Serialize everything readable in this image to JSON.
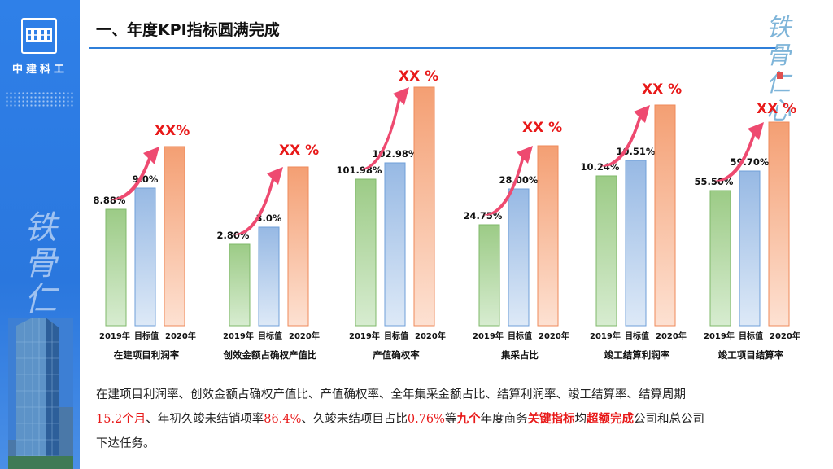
{
  "sidebar": {
    "company_name": "中建科工",
    "calligraphy": "铁骨仁心"
  },
  "title": "一、年度KPI指标圆满完成",
  "seal": {
    "text": "铁骨仁心"
  },
  "colors": {
    "green": "#a3cf8f",
    "blue": "#a9c6e8",
    "orange": "#f6ac83",
    "arrow": "#ee4a70",
    "accent_red": "#e81919",
    "rule": "#2f7fd9"
  },
  "chart_data": [
    {
      "type": "bar",
      "name": "在建项目利润率",
      "categories": [
        "2019年",
        "目标值",
        "2020年"
      ],
      "labels": [
        "8.88%",
        "9.0%",
        ""
      ],
      "values": [
        8.88,
        9.0,
        null
      ],
      "highlight": "XX%"
    },
    {
      "type": "bar",
      "name": "创效金额占确权产值比",
      "categories": [
        "2019年",
        "目标值",
        "2020年"
      ],
      "labels": [
        "2.80%",
        "3.0%",
        ""
      ],
      "values": [
        2.8,
        3.0,
        null
      ],
      "highlight": "XX %"
    },
    {
      "type": "bar",
      "name": "产值确权率",
      "categories": [
        "2019年",
        "目标值",
        "2020年"
      ],
      "labels": [
        "101.98%",
        "102.98%",
        ""
      ],
      "values": [
        101.98,
        102.98,
        null
      ],
      "highlight": "XX %"
    },
    {
      "type": "bar",
      "name": "集采占比",
      "categories": [
        "2019年",
        "目标值",
        "2020年"
      ],
      "labels": [
        "24.75%",
        "28.00%",
        ""
      ],
      "values": [
        24.75,
        28.0,
        null
      ],
      "highlight": "XX %"
    },
    {
      "type": "bar",
      "name": "竣工结算利润率",
      "categories": [
        "2019年",
        "目标值",
        "2020年"
      ],
      "labels": [
        "10.24%",
        "10.51%",
        ""
      ],
      "values": [
        10.24,
        10.51,
        null
      ],
      "highlight": "XX %"
    },
    {
      "type": "bar",
      "name": "竣工项目结算率",
      "categories": [
        "2019年",
        "目标值",
        "2020年"
      ],
      "labels": [
        "55.50%",
        "59.70%",
        ""
      ],
      "values": [
        55.5,
        59.7,
        null
      ],
      "highlight": "XX %"
    }
  ],
  "summary": {
    "line1": "在建项目利润率、创效金额占确权产值比、产值确权率、全年集采金额占比、结算利润率、竣工结算率、结算周期",
    "p1": "15.2个月",
    "t1": "、年初久竣未结销项率",
    "p2": "86.4%",
    "t2": "、久竣未结项目占比",
    "p3": "0.76%",
    "t3": "等",
    "p4": "九个",
    "t4": "年度商务",
    "p5": "关键指标",
    "t5": "均",
    "p6": "超额完成",
    "t6": "公司和总公司",
    "line3": "下达任务。"
  }
}
